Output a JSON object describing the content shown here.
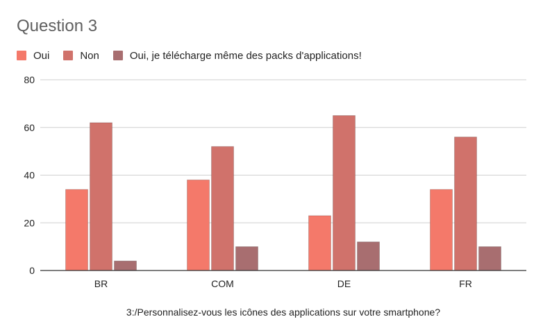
{
  "chart_data": {
    "type": "bar",
    "title": "Question 3",
    "xlabel": "3:/Personnalisez-vous les icônes des applications sur votre smartphone?",
    "ylabel": "",
    "categories": [
      "BR",
      "COM",
      "DE",
      "FR"
    ],
    "series": [
      {
        "name": "Oui",
        "color": "#f4796a",
        "values": [
          34,
          38,
          23,
          34
        ]
      },
      {
        "name": "Non",
        "color": "#d0726b",
        "values": [
          62,
          52,
          65,
          56
        ]
      },
      {
        "name": "Oui, je télécharge même des packs d'applications!",
        "color": "#a86e70",
        "values": [
          4,
          10,
          12,
          10
        ]
      }
    ],
    "ylim": [
      0,
      80
    ],
    "yticks": [
      0,
      20,
      40,
      60,
      80
    ],
    "grid": true,
    "legend_position": "top-left"
  }
}
